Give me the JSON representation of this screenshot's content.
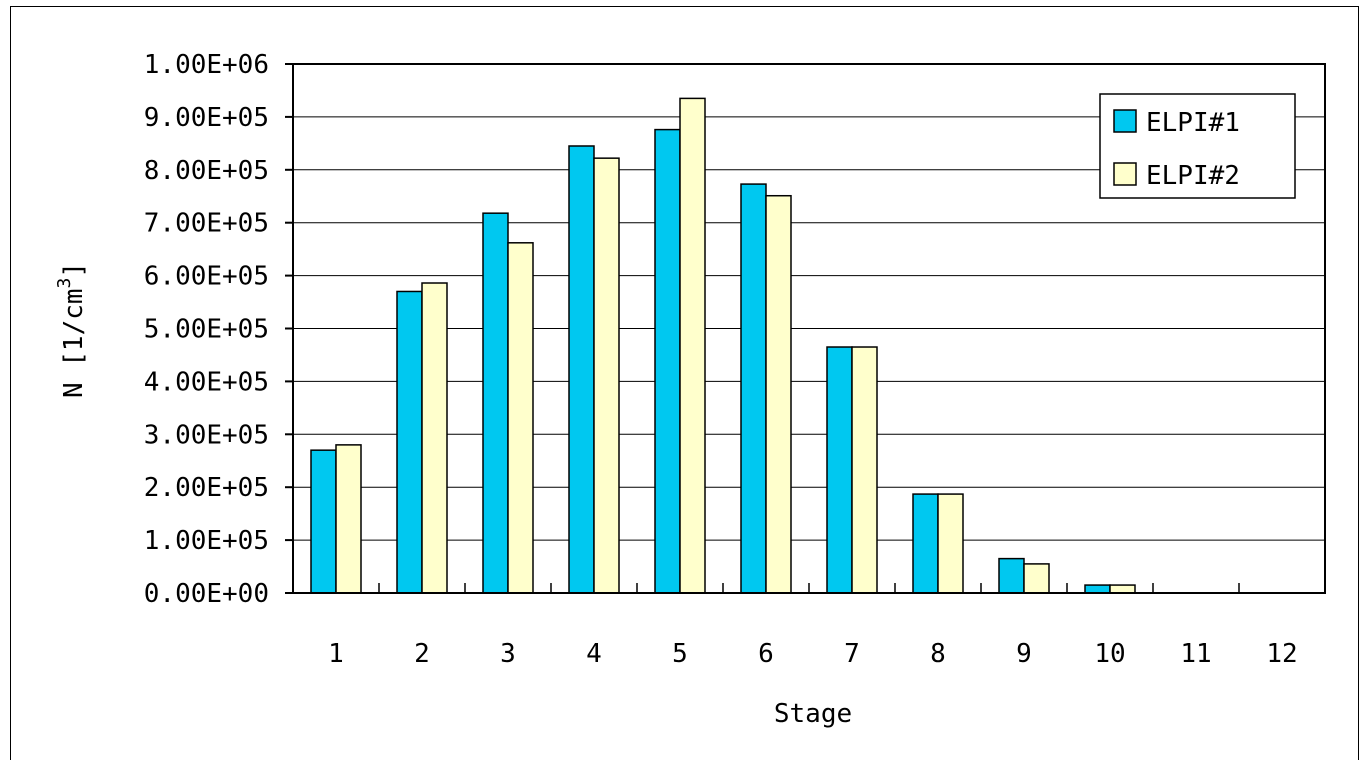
{
  "chart_data": {
    "type": "bar",
    "categories": [
      "1",
      "2",
      "3",
      "4",
      "5",
      "6",
      "7",
      "8",
      "9",
      "10",
      "11",
      "12"
    ],
    "series": [
      {
        "name": "ELPI#1",
        "color": "#00c8f0",
        "values": [
          270000,
          570000,
          718000,
          845000,
          876000,
          773000,
          465000,
          187000,
          65000,
          15000,
          0,
          0
        ]
      },
      {
        "name": "ELPI#2",
        "color": "#ffffcc",
        "values": [
          280000,
          586000,
          662000,
          822000,
          935000,
          751000,
          465000,
          187000,
          55000,
          15000,
          0,
          0
        ]
      }
    ],
    "y_ticks": [
      "0.00E+00",
      "1.00E+05",
      "2.00E+05",
      "3.00E+05",
      "4.00E+05",
      "5.00E+05",
      "6.00E+05",
      "7.00E+05",
      "8.00E+05",
      "9.00E+05",
      "1.00E+06"
    ],
    "ylim": [
      0,
      1000000
    ],
    "xlabel": "Stage",
    "ylabel_main": "N [1/cm",
    "ylabel_sup": "3",
    "ylabel_close": "]",
    "grid": true,
    "legend_position": "top-right"
  }
}
